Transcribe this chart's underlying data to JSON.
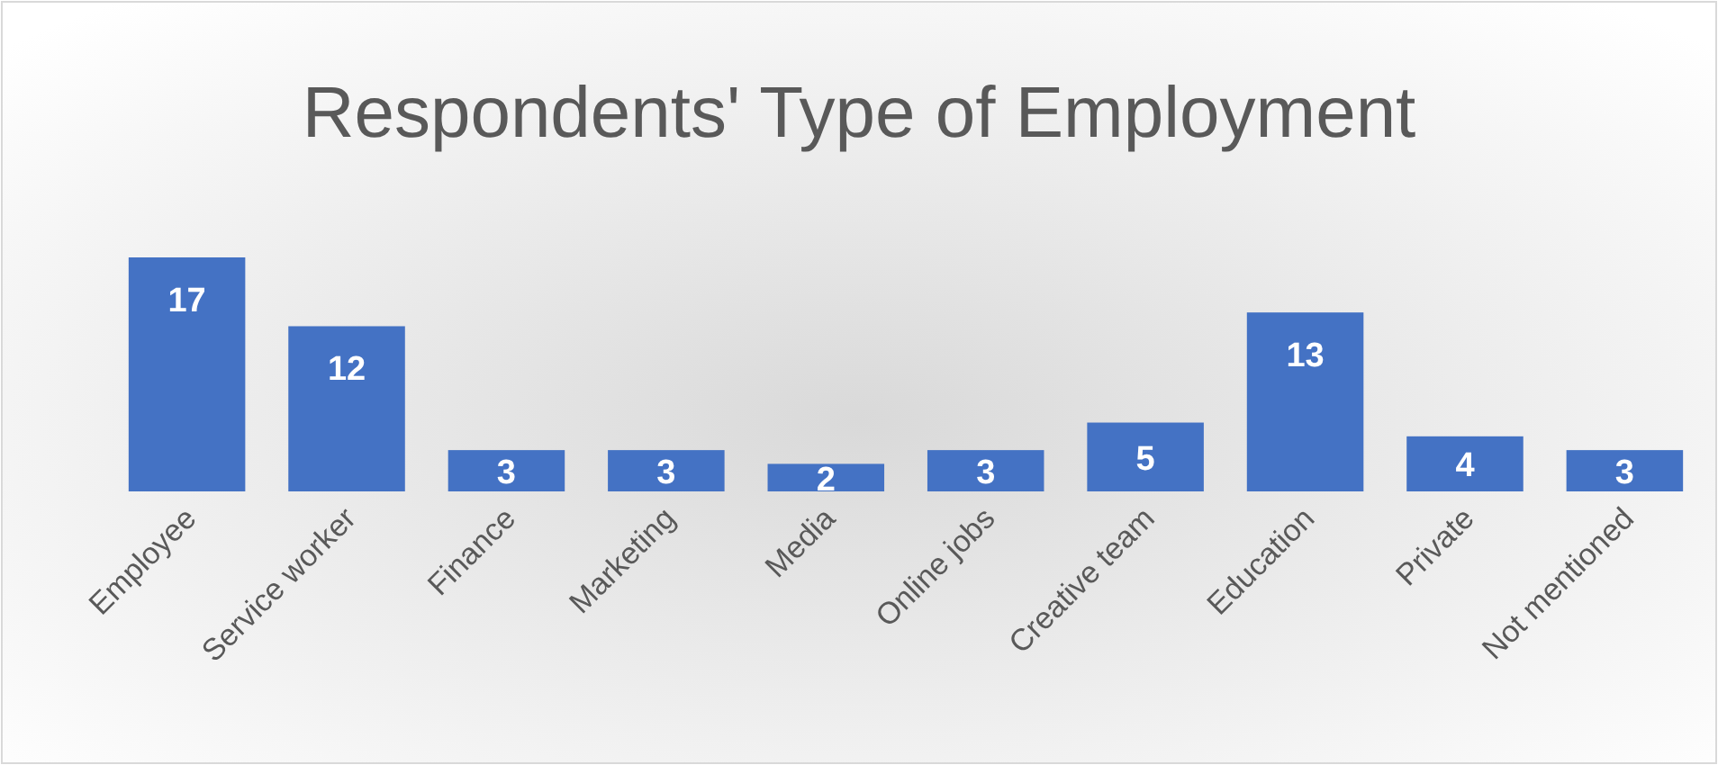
{
  "chart_data": {
    "type": "bar",
    "title": "Respondents' Type of Employment",
    "categories": [
      "Employee",
      "Service worker",
      "Finance",
      "Marketing",
      "Media",
      "Online jobs",
      "Creative team",
      "Education",
      "Private",
      "Not mentioned"
    ],
    "values": [
      17,
      12,
      3,
      3,
      2,
      3,
      5,
      13,
      4,
      3
    ],
    "color": "#4472c4",
    "data_labels": true
  }
}
